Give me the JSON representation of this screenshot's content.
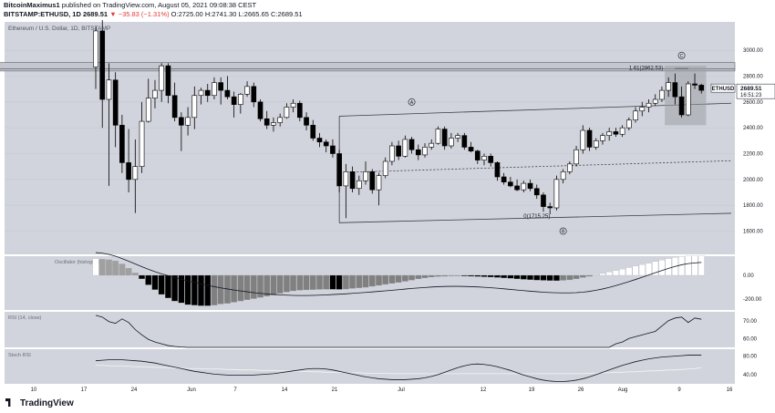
{
  "header": {
    "author": "BitcoinMaximus1",
    "published_text": "published on TradingView.com, August 05, 2021 09:08:38 CEST",
    "symbol": "BITSTAMP:ETHUSD, 1D",
    "last_price": "2689.51",
    "change": "▼ −35.83 (−1.31%)",
    "open_label": "O:",
    "open": "2725.00",
    "high_label": "H:",
    "high": "2741.30",
    "low_label": "L:",
    "low": "2665.65",
    "close_label": "C:",
    "close": "2689.51"
  },
  "footer": {
    "logo_text": "TradingView"
  },
  "colors": {
    "panel_bg": "#d1d4dc",
    "panel_gap": "#ffffff",
    "candle_fill_up": "#ffffff",
    "candle_fill_down": "#000000",
    "candle_outline": "#000000",
    "hist_pos": "#ffffff",
    "hist_pos_fade": "#a0a0a0",
    "hist_neg": "#000000",
    "hist_neg_fade": "#808080",
    "last_price_bg": "#ffffff",
    "highlight_box": "#9c9ea5"
  },
  "chart_data": {
    "type": "candlestick",
    "title": "Ethereum / U.S. Dollar, 1D, BITSTAMP",
    "x_ticks": [
      "10",
      "17",
      "24",
      "Jun",
      "7",
      "14",
      "21",
      "Jul",
      "12",
      "19",
      "26",
      "Aug",
      "9",
      "16"
    ],
    "price_axis": {
      "ticks": [
        1600,
        1800,
        2000,
        2200,
        2400,
        2600,
        2800,
        3000
      ],
      "range": [
        1420,
        3220
      ]
    },
    "last_price_tag": {
      "symbol": "ETHUSD",
      "price": "2689.51",
      "countdown": "16:51:23"
    },
    "annotations": {
      "fib_high": {
        "label": "1.61(2862.53)",
        "value": 2862.53
      },
      "fib_low": {
        "label": "0(1715.25)",
        "value": 1715.25
      },
      "wave_labels": [
        "A",
        "B",
        "C"
      ],
      "resistance_zone": [
        2840,
        2905
      ],
      "horizontal_dashed": 2100
    },
    "candles": [
      [
        2870,
        3180,
        2700,
        3150
      ],
      [
        3150,
        3290,
        2400,
        2620
      ],
      [
        2620,
        2900,
        1950,
        2770
      ],
      [
        2770,
        2830,
        2250,
        2420
      ],
      [
        2420,
        2500,
        2050,
        2130
      ],
      [
        2130,
        2390,
        1900,
        2000
      ],
      [
        2000,
        2310,
        1740,
        2100
      ],
      [
        2100,
        2600,
        2050,
        2450
      ],
      [
        2450,
        2780,
        2440,
        2630
      ],
      [
        2630,
        2770,
        2550,
        2690
      ],
      [
        2690,
        2900,
        2600,
        2880
      ],
      [
        2880,
        2900,
        2590,
        2650
      ],
      [
        2650,
        2750,
        2450,
        2480
      ],
      [
        2480,
        2520,
        2220,
        2420
      ],
      [
        2420,
        2560,
        2340,
        2480
      ],
      [
        2480,
        2720,
        2390,
        2650
      ],
      [
        2650,
        2710,
        2580,
        2690
      ],
      [
        2690,
        2740,
        2600,
        2650
      ],
      [
        2650,
        2790,
        2620,
        2750
      ],
      [
        2750,
        2790,
        2580,
        2690
      ],
      [
        2690,
        2800,
        2620,
        2640
      ],
      [
        2640,
        2680,
        2480,
        2580
      ],
      [
        2580,
        2670,
        2510,
        2660
      ],
      [
        2660,
        2760,
        2640,
        2720
      ],
      [
        2720,
        2750,
        2560,
        2600
      ],
      [
        2600,
        2620,
        2450,
        2470
      ],
      [
        2470,
        2530,
        2390,
        2420
      ],
      [
        2420,
        2480,
        2370,
        2440
      ],
      [
        2440,
        2510,
        2410,
        2480
      ],
      [
        2480,
        2590,
        2470,
        2560
      ],
      [
        2560,
        2620,
        2520,
        2590
      ],
      [
        2590,
        2610,
        2450,
        2480
      ],
      [
        2480,
        2520,
        2380,
        2420
      ],
      [
        2420,
        2460,
        2300,
        2320
      ],
      [
        2320,
        2360,
        2250,
        2290
      ],
      [
        2290,
        2310,
        2210,
        2260
      ],
      [
        2260,
        2310,
        2170,
        2200
      ],
      [
        2200,
        2230,
        1900,
        1950
      ],
      [
        1950,
        2120,
        1700,
        2060
      ],
      [
        2060,
        2100,
        1900,
        1930
      ],
      [
        1930,
        2030,
        1880,
        1990
      ],
      [
        1990,
        2140,
        1960,
        2060
      ],
      [
        2060,
        2080,
        1890,
        1920
      ],
      [
        1920,
        2050,
        1800,
        2030
      ],
      [
        2030,
        2170,
        2010,
        2140
      ],
      [
        2140,
        2290,
        2110,
        2260
      ],
      [
        2260,
        2300,
        2150,
        2180
      ],
      [
        2180,
        2340,
        2170,
        2310
      ],
      [
        2310,
        2330,
        2200,
        2230
      ],
      [
        2230,
        2270,
        2150,
        2190
      ],
      [
        2190,
        2280,
        2170,
        2250
      ],
      [
        2250,
        2310,
        2230,
        2280
      ],
      [
        2280,
        2410,
        2270,
        2390
      ],
      [
        2390,
        2410,
        2230,
        2260
      ],
      [
        2260,
        2360,
        2240,
        2320
      ],
      [
        2320,
        2360,
        2290,
        2340
      ],
      [
        2340,
        2360,
        2230,
        2250
      ],
      [
        2250,
        2290,
        2210,
        2220
      ],
      [
        2220,
        2230,
        2120,
        2150
      ],
      [
        2150,
        2200,
        2110,
        2180
      ],
      [
        2180,
        2200,
        2100,
        2130
      ],
      [
        2130,
        2140,
        1990,
        2020
      ],
      [
        2020,
        2050,
        1960,
        1980
      ],
      [
        1980,
        2020,
        1940,
        1950
      ],
      [
        1950,
        2000,
        1910,
        1920
      ],
      [
        1920,
        1990,
        1900,
        1970
      ],
      [
        1970,
        2000,
        1910,
        1930
      ],
      [
        1930,
        1960,
        1850,
        1880
      ],
      [
        1880,
        1900,
        1750,
        1790
      ],
      [
        1790,
        1820,
        1730,
        1780
      ],
      [
        1780,
        2030,
        1760,
        2000
      ],
      [
        2000,
        2080,
        1970,
        2060
      ],
      [
        2060,
        2140,
        2040,
        2120
      ],
      [
        2120,
        2260,
        2100,
        2230
      ],
      [
        2230,
        2420,
        2200,
        2380
      ],
      [
        2380,
        2400,
        2220,
        2250
      ],
      [
        2250,
        2320,
        2230,
        2300
      ],
      [
        2300,
        2360,
        2270,
        2340
      ],
      [
        2340,
        2400,
        2300,
        2370
      ],
      [
        2370,
        2400,
        2330,
        2350
      ],
      [
        2350,
        2420,
        2330,
        2400
      ],
      [
        2400,
        2480,
        2380,
        2460
      ],
      [
        2460,
        2560,
        2440,
        2530
      ],
      [
        2530,
        2600,
        2490,
        2560
      ],
      [
        2560,
        2620,
        2520,
        2590
      ],
      [
        2590,
        2660,
        2570,
        2620
      ],
      [
        2620,
        2720,
        2600,
        2690
      ],
      [
        2690,
        2790,
        2640,
        2750
      ],
      [
        2750,
        2820,
        2580,
        2640
      ],
      [
        2640,
        2720,
        2480,
        2500
      ],
      [
        2500,
        2760,
        2490,
        2740
      ],
      [
        2740,
        2820,
        2700,
        2730
      ],
      [
        2730,
        2741,
        2665,
        2690
      ]
    ],
    "panels": [
      {
        "name": "Oscillator (histogram)",
        "axis_ticks": [
          -200,
          0
        ],
        "range": [
          -290,
          160
        ],
        "histogram": [
          140,
          135,
          130,
          120,
          95,
          60,
          20,
          -30,
          -80,
          -120,
          -160,
          -190,
          -215,
          -230,
          -245,
          -250,
          -255,
          -255,
          -250,
          -240,
          -235,
          -225,
          -215,
          -205,
          -195,
          -185,
          -175,
          -165,
          -150,
          -140,
          -130,
          -125,
          -122,
          -120,
          -118,
          -117,
          -117,
          -118,
          -115,
          -110,
          -105,
          -100,
          -92,
          -84,
          -76,
          -68,
          -60,
          -50,
          -40,
          -30,
          -22,
          -15,
          -10,
          -8,
          -5,
          -4,
          -6,
          -8,
          -10,
          -12,
          -15,
          -18,
          -22,
          -25,
          -30,
          -34,
          -37,
          -40,
          -42,
          -44,
          -45,
          -42,
          -38,
          -30,
          -18,
          -8,
          4,
          15,
          28,
          40,
          52,
          65,
          78,
          90,
          102,
          115,
          128,
          140,
          150,
          158,
          162,
          165,
          166
        ],
        "signal": [
          190,
          185,
          175,
          160,
          140,
          118,
          95,
          72,
          50,
          30,
          12,
          -3,
          -18,
          -33,
          -47,
          -60,
          -72,
          -84,
          -95,
          -105,
          -114,
          -123,
          -131,
          -138,
          -145,
          -151,
          -156,
          -160,
          -163,
          -166,
          -168,
          -169,
          -169,
          -168,
          -166,
          -164,
          -161,
          -158,
          -155,
          -151,
          -147,
          -143,
          -139,
          -134,
          -130,
          -125,
          -120,
          -115,
          -110,
          -106,
          -102,
          -98,
          -95,
          -93,
          -92,
          -92,
          -93,
          -95,
          -97,
          -100,
          -104,
          -108,
          -113,
          -118,
          -123,
          -128,
          -133,
          -137,
          -141,
          -144,
          -146,
          -147,
          -147,
          -145,
          -141,
          -134,
          -125,
          -114,
          -101,
          -86,
          -70,
          -53,
          -35,
          -16,
          3,
          22,
          40,
          58,
          74,
          88,
          98,
          104,
          108
        ]
      },
      {
        "name": "RSI (14, close)",
        "axis_ticks": [
          60,
          70
        ],
        "range": [
          55,
          75
        ],
        "values": [
          73,
          72,
          69.5,
          68.5,
          71,
          69,
          65,
          62,
          59.5,
          58,
          57,
          56,
          55.5,
          55.2,
          55,
          55,
          55,
          55,
          55,
          55,
          55,
          55,
          55,
          55,
          55,
          55,
          55,
          55,
          55,
          55,
          55,
          55,
          55,
          55,
          55,
          55,
          55,
          55,
          55,
          55,
          55,
          55,
          55,
          55,
          55,
          55,
          55,
          55,
          55,
          55,
          55,
          55,
          55,
          55,
          55,
          55,
          55,
          55,
          55,
          55,
          55,
          55,
          55,
          55,
          55,
          55,
          55,
          55,
          55,
          55,
          55,
          55,
          55,
          55,
          55,
          55,
          55,
          55,
          55,
          57,
          58,
          60,
          61,
          62,
          63,
          64,
          67,
          70,
          71.5,
          72,
          69,
          71.5,
          70.8
        ]
      },
      {
        "name": "Stoch RSI",
        "axis_ticks": [
          40,
          80
        ],
        "range": [
          20,
          95
        ],
        "k": [
          70,
          71,
          72,
          72,
          72,
          71,
          70,
          69,
          67,
          65,
          62,
          59,
          56,
          53,
          50,
          47,
          45,
          43,
          41,
          40,
          39,
          39,
          39,
          39,
          39,
          40,
          41,
          42,
          44,
          46,
          48,
          50,
          52,
          53,
          53,
          52,
          50,
          47,
          44,
          41,
          38,
          35,
          33,
          31,
          30,
          29,
          29,
          29,
          30,
          31,
          33,
          36,
          40,
          45,
          50,
          55,
          59,
          62,
          63,
          62,
          60,
          57,
          53,
          49,
          44,
          39,
          35,
          31,
          28,
          26,
          25,
          25,
          26,
          28,
          31,
          35,
          40,
          45,
          50,
          55,
          60,
          64,
          68,
          71,
          74,
          76,
          78,
          79,
          80,
          81,
          82,
          82,
          82
        ],
        "d": [
          60,
          60,
          59,
          59,
          58,
          58,
          57,
          57,
          56,
          56,
          55,
          55,
          54,
          54,
          53,
          53,
          53,
          52,
          52,
          52,
          51,
          51,
          50,
          50,
          50,
          49,
          49,
          49,
          48,
          48,
          47,
          47,
          47,
          46,
          46,
          45,
          45,
          45,
          44,
          44,
          44,
          43,
          43,
          43,
          43,
          42,
          42,
          42,
          42,
          42,
          42,
          42,
          42,
          42,
          42,
          42,
          42,
          42,
          42,
          42,
          42,
          42,
          42,
          42,
          42,
          42,
          42,
          42,
          42,
          42,
          42,
          42,
          42,
          42,
          42,
          43,
          43,
          44,
          44,
          45,
          45,
          46,
          46,
          47,
          48,
          48,
          49,
          50,
          50,
          51,
          52,
          53,
          55
        ]
      }
    ]
  }
}
